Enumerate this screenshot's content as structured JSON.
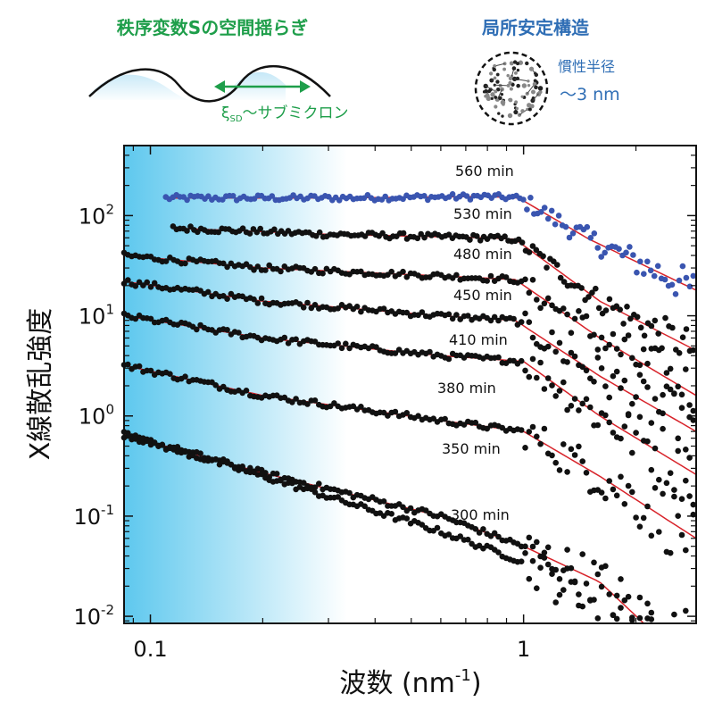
{
  "header": {
    "left_title": "秩序変数Sの空間揺らぎ",
    "xi_symbol": "ξ",
    "xi_subscript": "SD",
    "xi_text": "～サブミクロン",
    "right_title": "局所安定構造",
    "gyration_label": "慣性半径",
    "gyration_value": "～3 nm"
  },
  "colors": {
    "green": "#1e9e4a",
    "blue": "#2f6eb5",
    "red": "#d8232a",
    "dots": "#111111",
    "dots_560": "#3a55b0",
    "gradient": "#5ec8ee"
  },
  "chart_data": {
    "type": "scatter",
    "title": "",
    "xlabel": "波数 (nm⁻¹)",
    "ylabel": "X線散乱強度",
    "xscale": "log",
    "yscale": "log",
    "xlim": [
      0.085,
      2.9
    ],
    "ylim": [
      0.0085,
      500
    ],
    "xticks": [
      0.1,
      1
    ],
    "xtick_labels": [
      "0.1",
      "1"
    ],
    "yticks": [
      0.01,
      0.1,
      1,
      10,
      100
    ],
    "ytick_labels": [
      {
        "base": "10",
        "exp": "-2"
      },
      {
        "base": "10",
        "exp": "-1"
      },
      {
        "base": "10",
        "exp": "0"
      },
      {
        "base": "10",
        "exp": "1"
      },
      {
        "base": "10",
        "exp": "2"
      }
    ],
    "series": [
      {
        "name": "560 min",
        "fit": [
          [
            0.11,
            150
          ],
          [
            0.3,
            150
          ],
          [
            0.8,
            155
          ],
          [
            0.97,
            150
          ],
          [
            1.5,
            58
          ],
          [
            2.9,
            18
          ]
        ],
        "xmin": 0.11,
        "color_key": "dots_560"
      },
      {
        "name": "530 min",
        "fit": [
          [
            0.115,
            75
          ],
          [
            0.3,
            65
          ],
          [
            0.8,
            60
          ],
          [
            0.95,
            58
          ],
          [
            1.6,
            14
          ],
          [
            2.9,
            4.5
          ]
        ],
        "xmin": 0.115,
        "color_key": "dots"
      },
      {
        "name": "480 min",
        "fit": [
          [
            0.085,
            40
          ],
          [
            0.2,
            30
          ],
          [
            0.6,
            25
          ],
          [
            0.95,
            23
          ],
          [
            1.6,
            6
          ],
          [
            2.9,
            1.6
          ]
        ],
        "xmin": 0.085,
        "color_key": "dots"
      },
      {
        "name": "450 min",
        "fit": [
          [
            0.085,
            22
          ],
          [
            0.2,
            14
          ],
          [
            0.6,
            10
          ],
          [
            0.95,
            9
          ],
          [
            1.6,
            2.5
          ],
          [
            2.9,
            0.7
          ]
        ],
        "xmin": 0.085,
        "color_key": "dots"
      },
      {
        "name": "410 min",
        "fit": [
          [
            0.085,
            10
          ],
          [
            0.2,
            6
          ],
          [
            0.6,
            4
          ],
          [
            1.0,
            3.5
          ],
          [
            1.6,
            1.0
          ],
          [
            2.9,
            0.26
          ]
        ],
        "xmin": 0.085,
        "color_key": "dots"
      },
      {
        "name": "380 min",
        "fit": [
          [
            0.085,
            3.2
          ],
          [
            0.2,
            1.6
          ],
          [
            0.6,
            0.9
          ],
          [
            1.0,
            0.7
          ],
          [
            1.6,
            0.25
          ],
          [
            2.9,
            0.06
          ]
        ],
        "xmin": 0.085,
        "color_key": "dots"
      },
      {
        "name": "350 min",
        "fit": [
          [
            0.085,
            0.65
          ],
          [
            0.2,
            0.27
          ],
          [
            0.6,
            0.1
          ],
          [
            1.0,
            0.05
          ],
          [
            1.6,
            0.022
          ],
          [
            2.1,
            0.0085
          ]
        ],
        "xmin": 0.085,
        "color_key": "dots"
      },
      {
        "name": "300 min",
        "fit": [],
        "xmin": 0.085,
        "color_key": "dots"
      }
    ],
    "legend": "none",
    "grid": false,
    "gradient_band_x": [
      0.085,
      0.3
    ]
  }
}
